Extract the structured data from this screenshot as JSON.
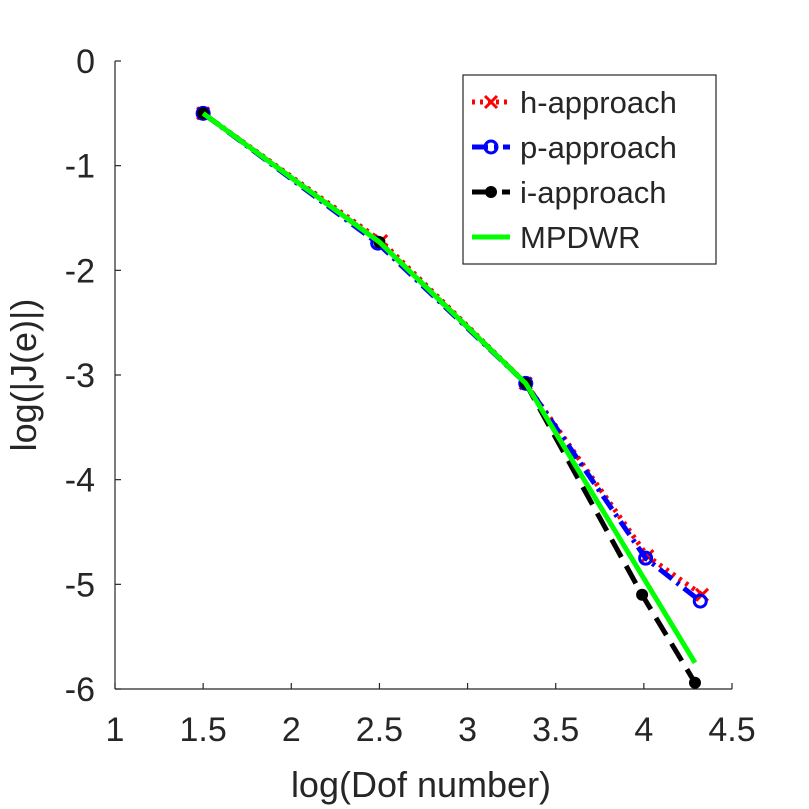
{
  "chart_data": {
    "type": "line",
    "title": "",
    "xlabel": "log(Dof number)",
    "ylabel": "log(|J(e)|)",
    "xlim": [
      1,
      4.5
    ],
    "ylim": [
      -6,
      0
    ],
    "xticks": [
      1,
      1.5,
      2,
      2.5,
      3,
      3.5,
      4,
      4.5
    ],
    "xtick_labels": [
      "1",
      "1.5",
      "2",
      "2.5",
      "3",
      "3.5",
      "4",
      "4.5"
    ],
    "yticks": [
      0,
      -1,
      -2,
      -3,
      -4,
      -5,
      -6
    ],
    "ytick_labels": [
      "0",
      "-1",
      "-2",
      "-3",
      "-4",
      "-5",
      "-6"
    ],
    "legend_position": "top-right",
    "series": [
      {
        "name": "h-approach",
        "color": "#ff0000",
        "style": "dotted",
        "marker": "x",
        "x": [
          1.5,
          2.51,
          3.33,
          4.02,
          4.33
        ],
        "y": [
          -0.5,
          -1.72,
          -3.08,
          -4.73,
          -5.1
        ]
      },
      {
        "name": "p-approach",
        "color": "#0000ff",
        "style": "dashdot",
        "marker": "circle",
        "x": [
          1.5,
          2.49,
          3.33,
          4.01,
          4.32
        ],
        "y": [
          -0.5,
          -1.74,
          -3.08,
          -4.75,
          -5.16
        ]
      },
      {
        "name": "i-approach",
        "color": "#000000",
        "style": "dashed",
        "marker": "star",
        "x": [
          1.5,
          2.5,
          3.33,
          3.99,
          4.29
        ],
        "y": [
          -0.5,
          -1.73,
          -3.08,
          -5.1,
          -5.94
        ]
      },
      {
        "name": "MPDWR",
        "color": "#00ff00",
        "style": "solid",
        "marker": "none",
        "x": [
          1.5,
          2.5,
          3.33,
          4.29
        ],
        "y": [
          -0.5,
          -1.73,
          -3.08,
          -5.75
        ]
      }
    ]
  }
}
